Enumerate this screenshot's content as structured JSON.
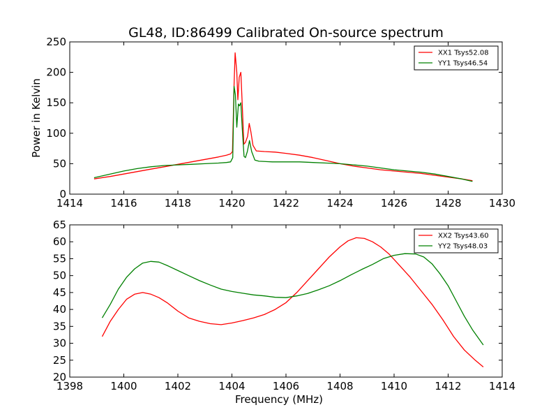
{
  "figure": {
    "title": "GL48, ID:86499 Calibrated On-source spectrum"
  },
  "colors": {
    "red": "#ff0000",
    "green": "#008000",
    "axis": "#000000",
    "background": "#ffffff"
  },
  "chart_data": [
    {
      "type": "line",
      "title": "GL48, ID:86499 Calibrated On-source spectrum",
      "xlabel": "",
      "ylabel": "Power in Kelvin",
      "xlim": [
        1414,
        1430
      ],
      "ylim": [
        0,
        250
      ],
      "xticks": [
        1414,
        1416,
        1418,
        1420,
        1422,
        1424,
        1426,
        1428,
        1430
      ],
      "yticks": [
        0,
        50,
        100,
        150,
        200,
        250
      ],
      "grid": false,
      "legend_position": "top-right",
      "series": [
        {
          "name": "XX1 Tsys52.08",
          "color": "#ff0000",
          "x": [
            1414.9,
            1415.5,
            1416.0,
            1416.5,
            1417.0,
            1417.5,
            1418.0,
            1418.5,
            1419.0,
            1419.5,
            1419.8,
            1419.95,
            1420.02,
            1420.08,
            1420.12,
            1420.18,
            1420.22,
            1420.27,
            1420.33,
            1420.38,
            1420.44,
            1420.5,
            1420.58,
            1420.64,
            1420.7,
            1420.78,
            1420.9,
            1421.2,
            1421.6,
            1422.0,
            1422.5,
            1423.0,
            1423.5,
            1424.0,
            1424.5,
            1425.0,
            1425.5,
            1426.0,
            1426.5,
            1427.0,
            1427.5,
            1428.0,
            1428.5,
            1428.9
          ],
          "y": [
            25,
            29,
            33,
            37,
            41,
            45,
            49,
            53,
            57,
            61,
            64,
            66,
            70,
            180,
            232,
            200,
            155,
            192,
            200,
            150,
            82,
            85,
            95,
            116,
            103,
            80,
            71,
            70,
            69,
            67,
            64,
            60,
            55,
            50,
            46,
            43,
            40,
            38,
            36,
            34,
            31,
            28,
            25,
            22
          ]
        },
        {
          "name": "YY1 Tsys46.54",
          "color": "#008000",
          "x": [
            1414.9,
            1415.5,
            1416.0,
            1416.5,
            1417.0,
            1417.5,
            1418.0,
            1418.5,
            1419.0,
            1419.5,
            1419.8,
            1419.95,
            1420.03,
            1420.08,
            1420.13,
            1420.18,
            1420.24,
            1420.28,
            1420.33,
            1420.38,
            1420.45,
            1420.5,
            1420.57,
            1420.65,
            1420.73,
            1420.85,
            1421.0,
            1421.5,
            1422.0,
            1422.5,
            1423.0,
            1423.5,
            1424.0,
            1424.5,
            1425.0,
            1425.5,
            1426.0,
            1426.5,
            1427.0,
            1427.5,
            1428.0,
            1428.5,
            1428.9
          ],
          "y": [
            27,
            33,
            38,
            42,
            45,
            47,
            48,
            49,
            50,
            51,
            52,
            53,
            60,
            177,
            163,
            110,
            148,
            145,
            150,
            110,
            62,
            60,
            70,
            88,
            70,
            56,
            54,
            53,
            53,
            53,
            52,
            51,
            50,
            48,
            46,
            43,
            40,
            38,
            36,
            33,
            29,
            25,
            21
          ]
        }
      ]
    },
    {
      "type": "line",
      "title": "",
      "xlabel": "Frequency (MHz)",
      "ylabel": "",
      "xlim": [
        1398,
        1414
      ],
      "ylim": [
        20,
        65
      ],
      "xticks": [
        1398,
        1400,
        1402,
        1404,
        1406,
        1408,
        1410,
        1412,
        1414
      ],
      "yticks": [
        20,
        25,
        30,
        35,
        40,
        45,
        50,
        55,
        60,
        65
      ],
      "grid": false,
      "legend_position": "top-right",
      "series": [
        {
          "name": "XX2 Tsys43.60",
          "color": "#ff0000",
          "x": [
            1399.2,
            1399.5,
            1399.8,
            1400.1,
            1400.4,
            1400.7,
            1401.0,
            1401.3,
            1401.6,
            1402.0,
            1402.4,
            1402.8,
            1403.2,
            1403.6,
            1404.0,
            1404.4,
            1404.8,
            1405.2,
            1405.6,
            1406.0,
            1406.4,
            1406.8,
            1407.2,
            1407.6,
            1408.0,
            1408.3,
            1408.6,
            1408.9,
            1409.2,
            1409.5,
            1409.8,
            1410.2,
            1410.6,
            1411.0,
            1411.4,
            1411.8,
            1412.2,
            1412.6,
            1413.0,
            1413.3
          ],
          "y": [
            32,
            36.5,
            40,
            43,
            44.5,
            45,
            44.5,
            43.5,
            42,
            39.5,
            37.5,
            36.5,
            35.8,
            35.5,
            36,
            36.7,
            37.5,
            38.5,
            40,
            42,
            45,
            48.5,
            52,
            55.5,
            58.5,
            60.3,
            61.2,
            61,
            60,
            58.5,
            56.5,
            53,
            49.5,
            45.5,
            41.5,
            37,
            32,
            28,
            25,
            23
          ]
        },
        {
          "name": "YY2 Tsys48.03",
          "color": "#008000",
          "x": [
            1399.2,
            1399.5,
            1399.8,
            1400.1,
            1400.4,
            1400.7,
            1401.0,
            1401.3,
            1401.6,
            1402.0,
            1402.4,
            1402.8,
            1403.2,
            1403.6,
            1404.0,
            1404.4,
            1404.8,
            1405.2,
            1405.6,
            1406.0,
            1406.4,
            1406.8,
            1407.2,
            1407.6,
            1408.0,
            1408.4,
            1408.8,
            1409.2,
            1409.6,
            1410.0,
            1410.4,
            1410.8,
            1411.1,
            1411.4,
            1411.7,
            1412.0,
            1412.3,
            1412.6,
            1412.9,
            1413.3
          ],
          "y": [
            37.5,
            41.5,
            46,
            49.5,
            52,
            53.7,
            54.2,
            54,
            53,
            51.5,
            50,
            48.5,
            47.2,
            46,
            45.3,
            44.8,
            44.3,
            44,
            43.6,
            43.5,
            44,
            44.7,
            45.8,
            47,
            48.5,
            50.2,
            51.8,
            53.3,
            55,
            56,
            56.5,
            56.4,
            55.5,
            53.5,
            50.5,
            47,
            42.5,
            38,
            34,
            29.5
          ]
        }
      ]
    }
  ]
}
